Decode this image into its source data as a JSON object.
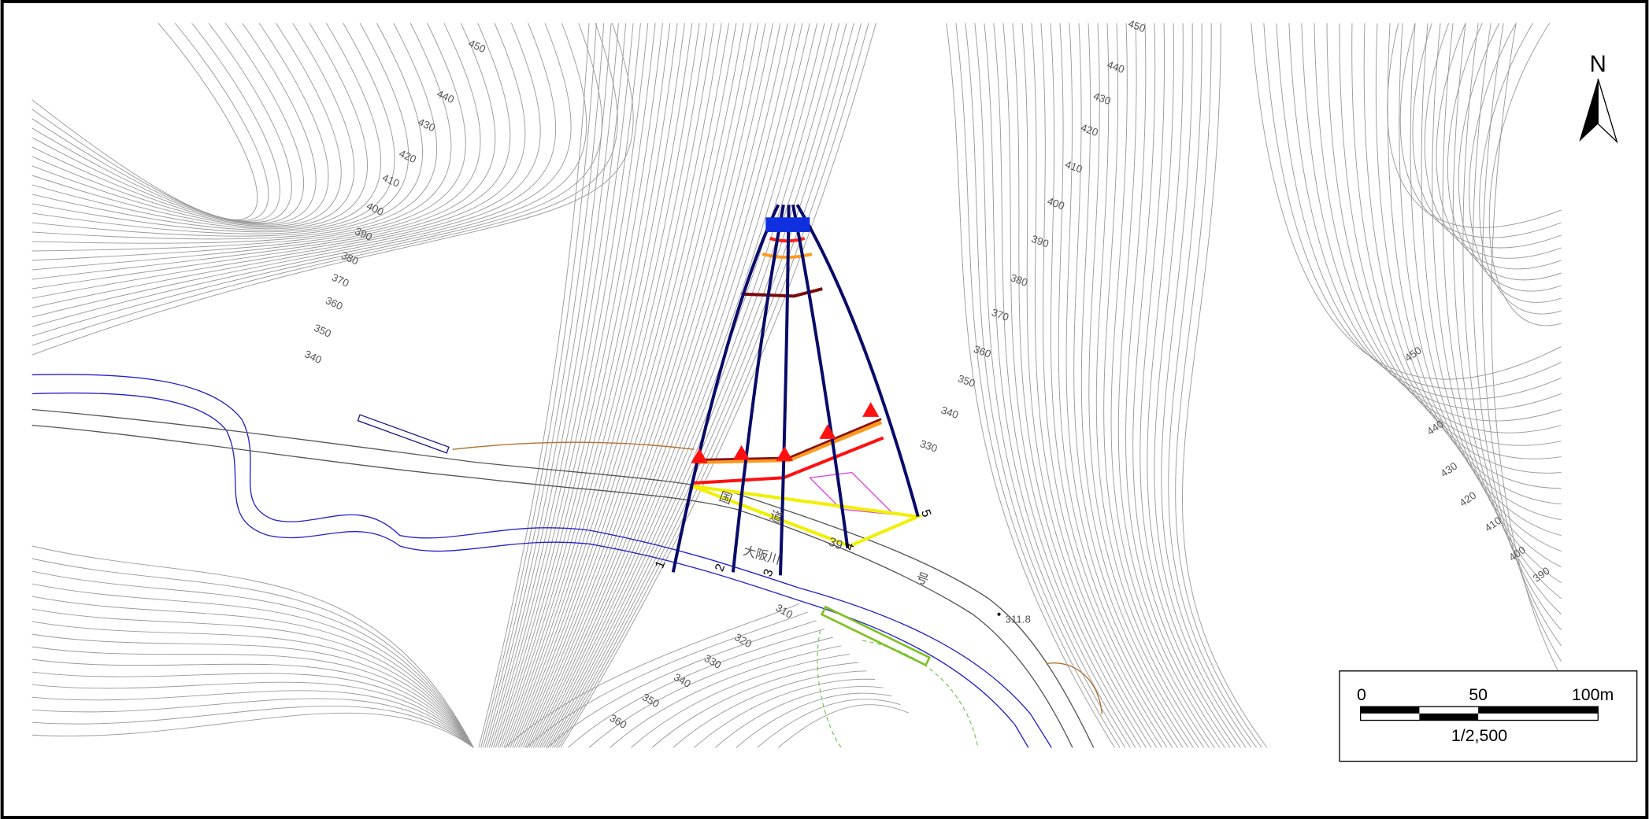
{
  "map": {
    "north": "N",
    "contour_labels": {
      "left": [
        "450",
        "440",
        "430",
        "420",
        "410",
        "400",
        "390",
        "380",
        "370",
        "360",
        "350",
        "340"
      ],
      "upper_right": [
        "450",
        "440",
        "430",
        "420",
        "410",
        "400",
        "390",
        "380",
        "370",
        "360",
        "350",
        "340",
        "330"
      ],
      "far_right": [
        "450",
        "440",
        "430",
        "420",
        "410",
        "400",
        "390"
      ],
      "bottom": [
        "310",
        "320",
        "330",
        "340",
        "350",
        "360"
      ]
    },
    "profile_lines": [
      "1",
      "2",
      "3",
      "4",
      "5"
    ],
    "place_labels": {
      "road_1": "国",
      "road_2": "道",
      "road_3": "39",
      "road_4": "号",
      "river": "大阪川",
      "spot_height": "311.8"
    },
    "scale_bar": {
      "ticks": [
        "0",
        "50",
        "100m"
      ],
      "ratio": "1/2,500"
    }
  }
}
